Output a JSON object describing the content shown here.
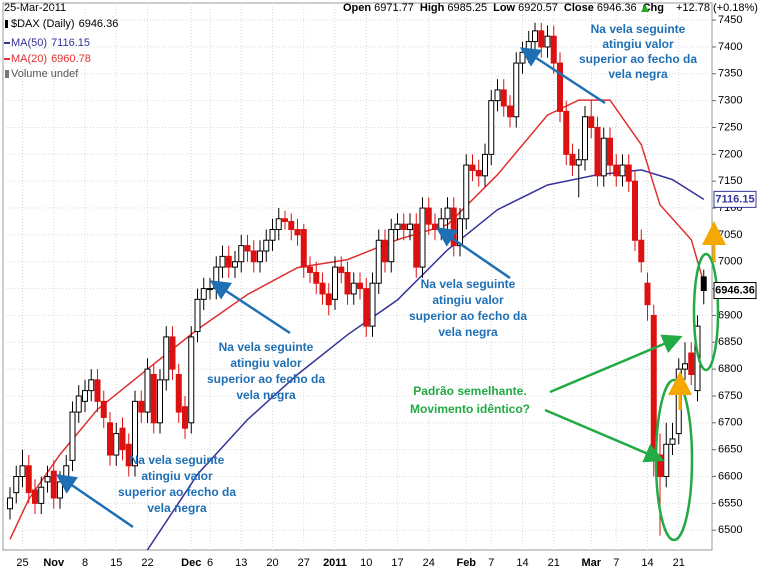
{
  "chart_data": {
    "type": "candlestick",
    "date": "25-Mar-2011",
    "header": {
      "labels": [
        "Open",
        "High",
        "Low",
        "Close",
        "Chg"
      ],
      "change": "+12.78 (+0.18%)"
    },
    "symbol": "$DAX (Daily)",
    "volume_label": "Volume undef",
    "categories": [
      null,
      null,
      "25",
      null,
      null,
      null,
      null,
      "Nov",
      null,
      null,
      null,
      null,
      "8",
      null,
      null,
      null,
      null,
      "15",
      null,
      null,
      null,
      null,
      "22",
      null,
      null,
      null,
      null,
      null,
      null,
      "Dec",
      null,
      null,
      "6",
      null,
      null,
      null,
      null,
      "13",
      null,
      null,
      null,
      null,
      "20",
      null,
      null,
      null,
      null,
      "27",
      null,
      null,
      null,
      null,
      "2011",
      null,
      null,
      null,
      null,
      "10",
      null,
      null,
      null,
      null,
      "17",
      null,
      null,
      null,
      null,
      "24",
      null,
      null,
      null,
      null,
      null,
      "Feb",
      null,
      null,
      null,
      "7",
      null,
      null,
      null,
      null,
      "14",
      null,
      null,
      null,
      null,
      "21",
      null,
      null,
      null,
      null,
      null,
      "Mar",
      null,
      null,
      null,
      "7",
      null,
      null,
      null,
      null,
      "14",
      null,
      null,
      null,
      null,
      "21",
      null,
      null,
      null,
      null
    ],
    "open": [
      6540,
      6570,
      6600,
      6620,
      6575,
      6550,
      6590,
      6610,
      6560,
      6590,
      6630,
      6720,
      6740,
      6760,
      6780,
      6740,
      6700,
      6640,
      6690,
      6660,
      6620,
      6740,
      6720,
      6790,
      6700,
      6780,
      6860,
      6790,
      6730,
      6700,
      6870,
      6930,
      6950,
      6950,
      6990,
      7010,
      6990,
      7000,
      7030,
      7020,
      7000,
      7020,
      7040,
      7060,
      7080,
      7075,
      7060,
      7060,
      6990,
      6980,
      6960,
      6940,
      6930,
      6990,
      6980,
      6940,
      6960,
      6950,
      6880,
      6960,
      7040,
      7000,
      7060,
      7070,
      7060,
      7070,
      6990,
      7100,
      7070,
      7060,
      7080,
      7100,
      7030,
      7080,
      7180,
      7170,
      7160,
      7200,
      7300,
      7320,
      7290,
      7270,
      7370,
      7390,
      7410,
      7430,
      7400,
      7420,
      7370,
      7280,
      7200,
      7180,
      7190,
      7270,
      7250,
      7160,
      7230,
      7180,
      7160,
      7180,
      7150,
      7040,
      6960,
      6900,
      6640,
      6600,
      6660,
      6680,
      6800,
      6830,
      6760,
      6971.77
    ],
    "high": [
      6580,
      6620,
      6650,
      6640,
      6595,
      6600,
      6620,
      6630,
      6610,
      6640,
      6740,
      6770,
      6780,
      6800,
      6800,
      6760,
      6720,
      6700,
      6710,
      6680,
      6760,
      6760,
      6820,
      6810,
      6800,
      6880,
      6880,
      6810,
      6750,
      6880,
      6950,
      6970,
      6970,
      7010,
      7030,
      7030,
      7020,
      7050,
      7050,
      7040,
      7040,
      7060,
      7080,
      7100,
      7095,
      7090,
      7080,
      7070,
      7010,
      7000,
      6980,
      6960,
      7010,
      7010,
      7000,
      6980,
      6980,
      6970,
      6980,
      7060,
      7060,
      7080,
      7090,
      7090,
      7090,
      7090,
      7120,
      7120,
      7090,
      7100,
      7120,
      7120,
      7100,
      7200,
      7200,
      7190,
      7220,
      7320,
      7340,
      7340,
      7310,
      7390,
      7410,
      7430,
      7445,
      7445,
      7440,
      7440,
      7390,
      7300,
      7220,
      7210,
      7290,
      7300,
      7270,
      7250,
      7250,
      7200,
      7200,
      7200,
      7170,
      7060,
      6980,
      6920,
      6680,
      6700,
      6700,
      6820,
      6850,
      6850,
      6900,
      6985.25
    ],
    "low": [
      6520,
      6550,
      6580,
      6550,
      6530,
      6530,
      6570,
      6540,
      6540,
      6570,
      6610,
      6700,
      6720,
      6740,
      6720,
      6690,
      6620,
      6620,
      6630,
      6600,
      6600,
      6700,
      6700,
      6680,
      6680,
      6760,
      6780,
      6700,
      6670,
      6680,
      6850,
      6910,
      6930,
      6930,
      6970,
      6970,
      6970,
      6980,
      7000,
      6980,
      6980,
      7000,
      7020,
      7040,
      7060,
      7040,
      7030,
      6970,
      6960,
      6940,
      6920,
      6900,
      6910,
      6960,
      6920,
      6920,
      6930,
      6860,
      6860,
      6940,
      6980,
      6980,
      7040,
      7040,
      7040,
      6970,
      6970,
      7050,
      7040,
      7040,
      7060,
      7010,
      7010,
      7060,
      7150,
      7140,
      7140,
      7180,
      7280,
      7270,
      7250,
      7250,
      7350,
      7370,
      7390,
      7380,
      7380,
      7350,
      7260,
      7180,
      7160,
      7120,
      7170,
      7230,
      7140,
      7140,
      7160,
      7140,
      7140,
      7130,
      7020,
      6980,
      6890,
      6600,
      6490,
      6580,
      6640,
      6660,
      6780,
      6770,
      6740,
      6920.57
    ],
    "close": [
      6560,
      6600,
      6620,
      6570,
      6550,
      6580,
      6600,
      6560,
      6590,
      6620,
      6720,
      6750,
      6760,
      6780,
      6740,
      6710,
      6640,
      6680,
      6650,
      6620,
      6740,
      6720,
      6800,
      6700,
      6780,
      6860,
      6800,
      6720,
      6690,
      6860,
      6930,
      6950,
      6950,
      6990,
      7010,
      6990,
      7000,
      7030,
      7020,
      7000,
      7020,
      7040,
      7060,
      7080,
      7075,
      7060,
      7050,
      6990,
      6980,
      6960,
      6940,
      6920,
      6990,
      6980,
      6940,
      6960,
      6950,
      6880,
      6960,
      7040,
      7000,
      7060,
      7070,
      7060,
      7070,
      6990,
      7100,
      7070,
      7060,
      7080,
      7100,
      7030,
      7080,
      7180,
      7170,
      7160,
      7200,
      7300,
      7320,
      7290,
      7270,
      7370,
      7390,
      7410,
      7430,
      7400,
      7420,
      7370,
      7280,
      7200,
      7180,
      7190,
      7270,
      7250,
      7160,
      7230,
      7180,
      7160,
      7180,
      7150,
      7040,
      7000,
      6920,
      6640,
      6600,
      6660,
      6670,
      6800,
      6810,
      6790,
      6880,
      6946.36
    ],
    "series": [
      {
        "name": "MA(50)",
        "color": "#333399",
        "x": [
          21,
          30,
          38,
          46,
          54,
          62,
          70,
          78,
          86,
          94,
          101,
          106,
          111
        ],
        "values": [
          6446,
          6604,
          6706,
          6790,
          6864,
          6929,
          7022,
          7097,
          7143,
          7162,
          7171,
          7153,
          7116.15
        ]
      },
      {
        "name": "MA(20)",
        "color": "#e03030",
        "x": [
          0,
          3,
          8,
          14,
          22,
          30,
          38,
          46,
          54,
          62,
          70,
          78,
          86,
          91,
          96,
          101,
          104,
          109,
          111
        ],
        "values": [
          6483,
          6558,
          6641,
          6725,
          6800,
          6874,
          6939,
          6989,
          7004,
          7041,
          7069,
          7162,
          7273,
          7301,
          7301,
          7218,
          7106,
          7041,
          6960.78
        ]
      }
    ],
    "ylim": [
      6465,
      7480
    ],
    "yticks": [
      6500,
      6550,
      6600,
      6650,
      6700,
      6750,
      6800,
      6850,
      6900,
      6950,
      7000,
      7050,
      7100,
      7150,
      7200,
      7250,
      7300,
      7350,
      7400,
      7450
    ],
    "grid": true,
    "annotations": [
      {
        "lines": [
          "Na vela seguinte",
          "atingiu valor",
          "superior ao fecho da",
          "vela negra"
        ]
      },
      {
        "lines": [
          "Na vela seguinte",
          "atingiu valor",
          "superior ao fecho da",
          "vela negra"
        ]
      },
      {
        "lines": [
          "Na vela seguinte",
          "atingiu valor",
          "superior ao fecho da",
          "vela negra"
        ]
      },
      {
        "lines": [
          "Na vela seguinte",
          "atingiu valor",
          "superior ao fecho da",
          "vela negra"
        ]
      },
      {
        "lines": [
          "Padrão semelhante.",
          "Movimento idêntico?"
        ]
      }
    ]
  }
}
